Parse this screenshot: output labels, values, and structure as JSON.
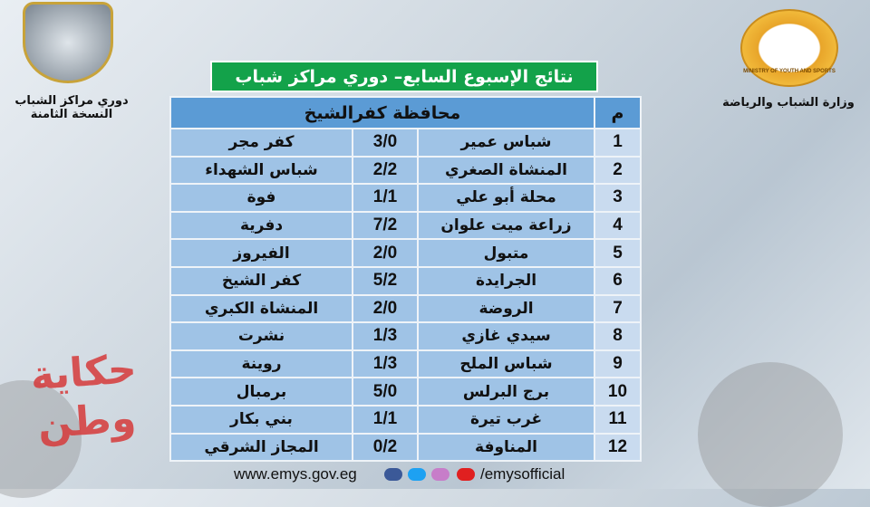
{
  "title": "نتائج الإسبوع السابع– دوري مراكز شباب",
  "header": {
    "number": "م",
    "governorate": "محافظة كفرالشيخ"
  },
  "left_label": {
    "line1": "دوري مراكز الشباب",
    "line2": "النسخة الثامنة"
  },
  "right_label": "وزارة الشباب والرياضة",
  "ministry_logo_text": "MINISTRY OF YOUTH AND SPORTS",
  "watermark": "حكاية وطن",
  "matches": [
    {
      "n": "1",
      "home": "شباس عمير",
      "score": "3/0",
      "away": "كفر مجر"
    },
    {
      "n": "2",
      "home": "المنشاة الصغري",
      "score": "2/2",
      "away": "شباس الشهداء"
    },
    {
      "n": "3",
      "home": "محلة أبو علي",
      "score": "1/1",
      "away": "فوة"
    },
    {
      "n": "4",
      "home": "زراعة ميت علوان",
      "score": "7/2",
      "away": "دفرية"
    },
    {
      "n": "5",
      "home": "متبول",
      "score": "2/0",
      "away": "الفيروز"
    },
    {
      "n": "6",
      "home": "الجرايدة",
      "score": "5/2",
      "away": "كفر الشيخ"
    },
    {
      "n": "7",
      "home": "الروضة",
      "score": "2/0",
      "away": "المنشاة الكبري"
    },
    {
      "n": "8",
      "home": "سيدي غازي",
      "score": "1/3",
      "away": "نشرت"
    },
    {
      "n": "9",
      "home": "شباس الملح",
      "score": "1/3",
      "away": "روينة"
    },
    {
      "n": "10",
      "home": "برج البرلس",
      "score": "5/0",
      "away": "برمبال"
    },
    {
      "n": "11",
      "home": "غرب تيرة",
      "score": "1/1",
      "away": "بني بكار"
    },
    {
      "n": "12",
      "home": "المناوفة",
      "score": "0/2",
      "away": "المجاز الشرقي"
    }
  ],
  "footer": {
    "website": "www.emys.gov.eg",
    "social": "/emysofficial"
  },
  "colors": {
    "title_bg": "#13a24a",
    "header_bg": "#5b9bd5",
    "cell_bg": "#9fc3e6",
    "num_bg": "#c9dbef"
  }
}
